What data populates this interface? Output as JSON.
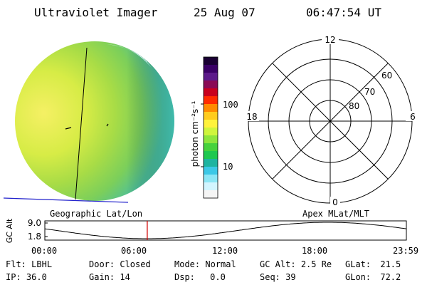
{
  "header": {
    "instrument": "Ultraviolet Imager",
    "date": "25 Aug 07",
    "time": "06:47:54 UT"
  },
  "colorbar": {
    "unit_label": "photon cm⁻²s⁻¹",
    "ticks": [
      "100",
      "10"
    ],
    "colors": [
      "#1a0033",
      "#3a0066",
      "#5c1a8a",
      "#8a0a55",
      "#c8001e",
      "#ff2b00",
      "#ff8a00",
      "#ffcc1e",
      "#fff23c",
      "#cff53c",
      "#8de63c",
      "#46d23c",
      "#1ec850",
      "#1eb4a0",
      "#3cc8e6",
      "#8ce6f5",
      "#d2f5ff",
      "#f5f5f5"
    ]
  },
  "image_panel": {
    "caption": "Geographic Lat/Lon"
  },
  "polar_panel": {
    "caption": "Apex MLat/MLT",
    "mlt_labels": {
      "top": "12",
      "left": "18",
      "right": "6",
      "bottom": "0"
    },
    "lat_labels": [
      "60",
      "70",
      "80"
    ]
  },
  "altitude_plot": {
    "ylabel": "GC Alt",
    "y_ticks": [
      "9.0",
      "1.8"
    ],
    "x_ticks": [
      "00:00",
      "06:00",
      "12:00",
      "18:00",
      "23:59"
    ],
    "marker_time": "06:47:54"
  },
  "status": {
    "row1": [
      {
        "label": "Flt:",
        "value": "LBHL"
      },
      {
        "label": "Door:",
        "value": "Closed"
      },
      {
        "label": "Mode:",
        "value": "Normal"
      },
      {
        "label": "GC Alt:",
        "value": "2.5 Re"
      },
      {
        "label": "GLat:",
        "value": "21.5"
      }
    ],
    "row2": [
      {
        "label": "IP:",
        "value": "36.0"
      },
      {
        "label": "Gain:",
        "value": "14"
      },
      {
        "label": "Dsp:",
        "value": "0.0"
      },
      {
        "label": "Seq:",
        "value": "39"
      },
      {
        "label": "GLon:",
        "value": "72.2"
      }
    ]
  }
}
